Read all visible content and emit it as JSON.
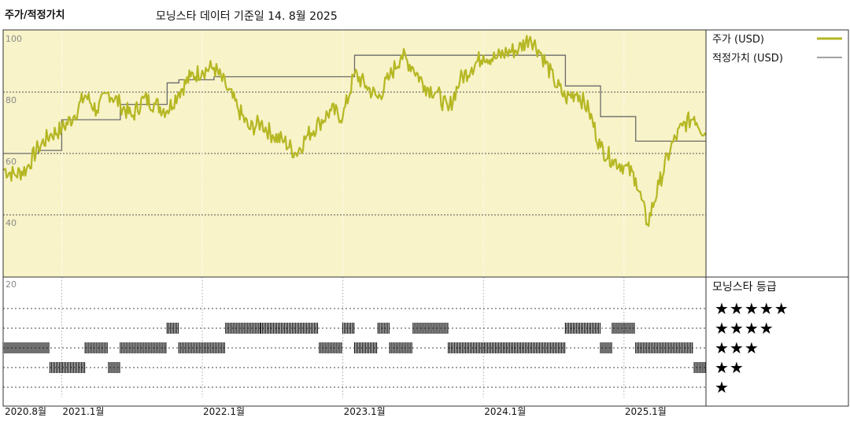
{
  "header": {
    "title": "주가/적정가치",
    "subtitle": "모닝스타 데이터 기준일 14. 8월 2025"
  },
  "colors": {
    "plot_bg": "#f8f3c8",
    "price_line": "#b5b723",
    "fair_line": "#6b6b6b",
    "grid": "#555555",
    "rating_bar": "#111111"
  },
  "legend": {
    "price_label": "주가 (USD)",
    "fair_label": "적정가치 (USD)"
  },
  "rating_panel": {
    "title": "모닝스타 등급",
    "rows": [
      "★★★★★",
      "★★★★",
      "★★★",
      "★★",
      "★"
    ]
  },
  "chart_data": {
    "type": "line",
    "x_start": "2020-08",
    "x_end": "2025-08",
    "ylim": [
      20,
      105
    ],
    "y_ticks": [
      "100",
      "80",
      "60",
      "40",
      "20"
    ],
    "x_ticks": [
      {
        "label": "2020.8월",
        "date": "2020-08"
      },
      {
        "label": "2021.1월",
        "date": "2021-01"
      },
      {
        "label": "2022.1월",
        "date": "2022-01"
      },
      {
        "label": "2023.1월",
        "date": "2023-01"
      },
      {
        "label": "2024.1월",
        "date": "2024-01"
      },
      {
        "label": "2025.1월",
        "date": "2025-01"
      }
    ],
    "series": [
      {
        "name": "주가 (USD)",
        "points": [
          [
            "2020-08",
            55
          ],
          [
            "2020-09",
            53
          ],
          [
            "2020-10",
            55
          ],
          [
            "2020-11",
            62
          ],
          [
            "2020-12",
            66
          ],
          [
            "2021-01",
            68
          ],
          [
            "2021-02",
            72
          ],
          [
            "2021-03",
            79
          ],
          [
            "2021-04",
            74
          ],
          [
            "2021-05",
            80
          ],
          [
            "2021-06",
            76
          ],
          [
            "2021-07",
            72
          ],
          [
            "2021-08",
            78
          ],
          [
            "2021-09",
            76
          ],
          [
            "2021-10",
            74
          ],
          [
            "2021-11",
            80
          ],
          [
            "2021-12",
            85
          ],
          [
            "2022-01",
            87
          ],
          [
            "2022-02",
            88
          ],
          [
            "2022-03",
            82
          ],
          [
            "2022-04",
            75
          ],
          [
            "2022-05",
            68
          ],
          [
            "2022-06",
            70
          ],
          [
            "2022-07",
            66
          ],
          [
            "2022-08",
            64
          ],
          [
            "2022-09",
            60
          ],
          [
            "2022-10",
            66
          ],
          [
            "2022-11",
            70
          ],
          [
            "2022-12",
            74
          ],
          [
            "2023-01",
            72
          ],
          [
            "2023-02",
            86
          ],
          [
            "2023-03",
            82
          ],
          [
            "2023-04",
            78
          ],
          [
            "2023-05",
            85
          ],
          [
            "2023-06",
            92
          ],
          [
            "2023-07",
            88
          ],
          [
            "2023-08",
            82
          ],
          [
            "2023-09",
            80
          ],
          [
            "2023-10",
            74
          ],
          [
            "2023-11",
            84
          ],
          [
            "2023-12",
            88
          ],
          [
            "2024-01",
            92
          ],
          [
            "2024-02",
            91
          ],
          [
            "2024-03",
            93
          ],
          [
            "2024-04",
            94
          ],
          [
            "2024-05",
            98
          ],
          [
            "2024-06",
            92
          ],
          [
            "2024-07",
            84
          ],
          [
            "2024-08",
            78
          ],
          [
            "2024-09",
            80
          ],
          [
            "2024-10",
            74
          ],
          [
            "2024-11",
            62
          ],
          [
            "2024-12",
            58
          ],
          [
            "2025-01",
            56
          ],
          [
            "2025-02",
            52
          ],
          [
            "2025-03",
            37
          ],
          [
            "2025-04",
            50
          ],
          [
            "2025-05",
            62
          ],
          [
            "2025-06",
            69
          ],
          [
            "2025-07",
            72
          ],
          [
            "2025-08",
            66
          ]
        ]
      },
      {
        "name": "적정가치 (USD)",
        "points": [
          [
            "2020-08",
            60
          ],
          [
            "2020-11",
            61
          ],
          [
            "2021-01",
            71
          ],
          [
            "2021-06",
            76
          ],
          [
            "2021-10",
            83
          ],
          [
            "2021-11",
            84
          ],
          [
            "2022-02",
            85
          ],
          [
            "2023-01",
            85
          ],
          [
            "2023-02",
            92
          ],
          [
            "2024-01",
            92
          ],
          [
            "2024-07",
            92
          ],
          [
            "2024-08",
            82
          ],
          [
            "2024-10",
            82
          ],
          [
            "2024-11",
            72
          ],
          [
            "2025-01",
            72
          ],
          [
            "2025-02",
            64
          ],
          [
            "2025-08",
            64
          ]
        ]
      }
    ],
    "ratings": {
      "levels": [
        "★★★★★",
        "★★★★",
        "★★★",
        "★★",
        "★"
      ],
      "periods": [
        {
          "stars": 3,
          "from": "2020-08",
          "to": "2020-12"
        },
        {
          "stars": 2,
          "from": "2020-12",
          "to": "2021-03"
        },
        {
          "stars": 3,
          "from": "2021-03",
          "to": "2021-05"
        },
        {
          "stars": 2,
          "from": "2021-05",
          "to": "2021-06"
        },
        {
          "stars": 3,
          "from": "2021-06",
          "to": "2021-10"
        },
        {
          "stars": 4,
          "from": "2021-10",
          "to": "2021-11"
        },
        {
          "stars": 3,
          "from": "2021-11",
          "to": "2022-03"
        },
        {
          "stars": 4,
          "from": "2022-03",
          "to": "2022-06"
        },
        {
          "stars": 4,
          "from": "2022-06",
          "to": "2022-11"
        },
        {
          "stars": 3,
          "from": "2022-11",
          "to": "2023-01"
        },
        {
          "stars": 4,
          "from": "2023-01",
          "to": "2023-02"
        },
        {
          "stars": 3,
          "from": "2023-02",
          "to": "2023-04"
        },
        {
          "stars": 4,
          "from": "2023-04",
          "to": "2023-05"
        },
        {
          "stars": 3,
          "from": "2023-05",
          "to": "2023-07"
        },
        {
          "stars": 4,
          "from": "2023-07",
          "to": "2023-10"
        },
        {
          "stars": 3,
          "from": "2023-10",
          "to": "2024-08"
        },
        {
          "stars": 4,
          "from": "2024-08",
          "to": "2024-11"
        },
        {
          "stars": 3,
          "from": "2024-11",
          "to": "2024-12"
        },
        {
          "stars": 4,
          "from": "2024-12",
          "to": "2025-02"
        },
        {
          "stars": 3,
          "from": "2025-02",
          "to": "2025-07"
        },
        {
          "stars": 2,
          "from": "2025-07",
          "to": "2025-08"
        }
      ]
    }
  }
}
